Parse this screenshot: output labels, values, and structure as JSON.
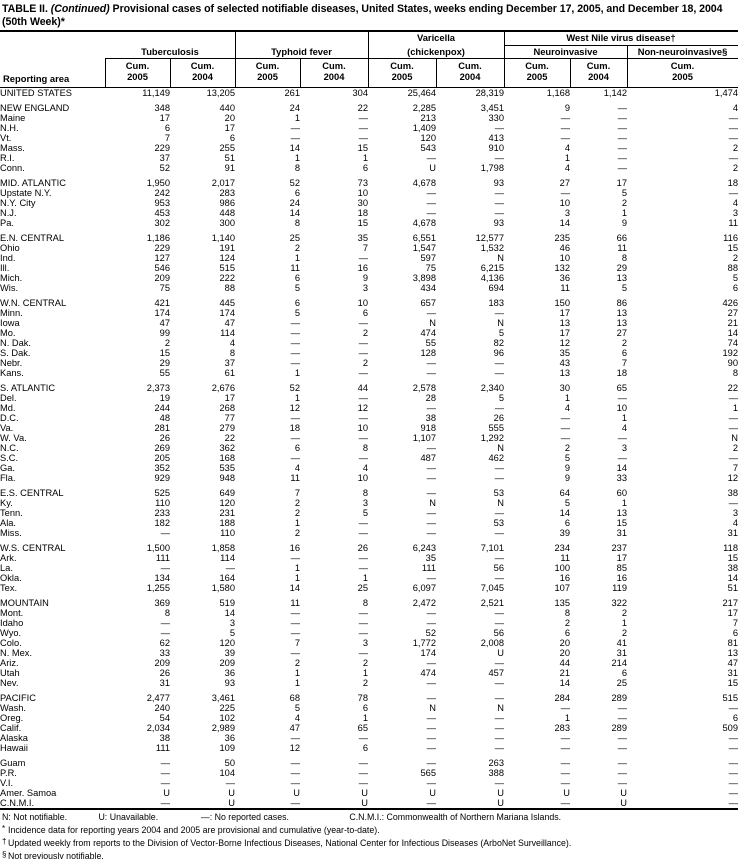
{
  "title": {
    "p1": "TABLE II.",
    "p2": "(Continued)",
    "p3": "Provisional cases of selected notifiable diseases, United States, weeks ending December 17, 2005, and December 18, 2004",
    "line2": "(50th Week)*"
  },
  "header": {
    "reporting_area": "Reporting area",
    "tuberculosis": "Tuberculosis",
    "typhoid": "Typhoid fever",
    "varicella_1": "Varicella",
    "varicella_2": "(chickenpox)",
    "wnv": "West Nile virus disease†",
    "neuro": "Neuroinvasive",
    "non_neuro": "Non-neuroinvasive§",
    "cum": "Cum.",
    "years": [
      "2005",
      "2004",
      "2005",
      "2004",
      "2005",
      "2004",
      "2005",
      "2004",
      "2005"
    ]
  },
  "table": {
    "rows": [
      {
        "area": "UNITED STATES",
        "type": "us",
        "gap": false,
        "values": [
          "11,149",
          "13,205",
          "261",
          "304",
          "25,464",
          "28,319",
          "1,168",
          "1,142",
          "1,474"
        ]
      },
      {
        "area": "NEW ENGLAND",
        "type": "region",
        "gap": true,
        "values": [
          "348",
          "440",
          "24",
          "22",
          "2,285",
          "3,451",
          "9",
          "—",
          "4"
        ]
      },
      {
        "area": "Maine",
        "type": "state",
        "gap": false,
        "values": [
          "17",
          "20",
          "1",
          "—",
          "213",
          "330",
          "—",
          "—",
          "—"
        ]
      },
      {
        "area": "N.H.",
        "type": "state",
        "gap": false,
        "values": [
          "6",
          "17",
          "—",
          "—",
          "1,409",
          "—",
          "—",
          "—",
          "—"
        ]
      },
      {
        "area": "Vt.",
        "type": "state",
        "gap": false,
        "values": [
          "7",
          "6",
          "—",
          "—",
          "120",
          "413",
          "—",
          "—",
          "—"
        ]
      },
      {
        "area": "Mass.",
        "type": "state",
        "gap": false,
        "values": [
          "229",
          "255",
          "14",
          "15",
          "543",
          "910",
          "4",
          "—",
          "2"
        ]
      },
      {
        "area": "R.I.",
        "type": "state",
        "gap": false,
        "values": [
          "37",
          "51",
          "1",
          "1",
          "—",
          "—",
          "1",
          "—",
          "—"
        ]
      },
      {
        "area": "Conn.",
        "type": "state",
        "gap": false,
        "values": [
          "52",
          "91",
          "8",
          "6",
          "U",
          "1,798",
          "4",
          "—",
          "2"
        ]
      },
      {
        "area": "MID. ATLANTIC",
        "type": "region",
        "gap": true,
        "values": [
          "1,950",
          "2,017",
          "52",
          "73",
          "4,678",
          "93",
          "27",
          "17",
          "18"
        ]
      },
      {
        "area": "Upstate N.Y.",
        "type": "state",
        "gap": false,
        "values": [
          "242",
          "283",
          "6",
          "10",
          "—",
          "—",
          "—",
          "5",
          "—"
        ]
      },
      {
        "area": "N.Y. City",
        "type": "state",
        "gap": false,
        "values": [
          "953",
          "986",
          "24",
          "30",
          "—",
          "—",
          "10",
          "2",
          "4"
        ]
      },
      {
        "area": "N.J.",
        "type": "state",
        "gap": false,
        "values": [
          "453",
          "448",
          "14",
          "18",
          "—",
          "—",
          "3",
          "1",
          "3"
        ]
      },
      {
        "area": "Pa.",
        "type": "state",
        "gap": false,
        "values": [
          "302",
          "300",
          "8",
          "15",
          "4,678",
          "93",
          "14",
          "9",
          "11"
        ]
      },
      {
        "area": "E.N. CENTRAL",
        "type": "region",
        "gap": true,
        "values": [
          "1,186",
          "1,140",
          "25",
          "35",
          "6,551",
          "12,577",
          "235",
          "66",
          "116"
        ]
      },
      {
        "area": "Ohio",
        "type": "state",
        "gap": false,
        "values": [
          "229",
          "191",
          "2",
          "7",
          "1,547",
          "1,532",
          "46",
          "11",
          "15"
        ]
      },
      {
        "area": "Ind.",
        "type": "state",
        "gap": false,
        "values": [
          "127",
          "124",
          "1",
          "—",
          "597",
          "N",
          "10",
          "8",
          "2"
        ]
      },
      {
        "area": "Ill.",
        "type": "state",
        "gap": false,
        "values": [
          "546",
          "515",
          "11",
          "16",
          "75",
          "6,215",
          "132",
          "29",
          "88"
        ]
      },
      {
        "area": "Mich.",
        "type": "state",
        "gap": false,
        "values": [
          "209",
          "222",
          "6",
          "9",
          "3,898",
          "4,136",
          "36",
          "13",
          "5"
        ]
      },
      {
        "area": "Wis.",
        "type": "state",
        "gap": false,
        "values": [
          "75",
          "88",
          "5",
          "3",
          "434",
          "694",
          "11",
          "5",
          "6"
        ]
      },
      {
        "area": "W.N. CENTRAL",
        "type": "region",
        "gap": true,
        "values": [
          "421",
          "445",
          "6",
          "10",
          "657",
          "183",
          "150",
          "86",
          "426"
        ]
      },
      {
        "area": "Minn.",
        "type": "state",
        "gap": false,
        "values": [
          "174",
          "174",
          "5",
          "6",
          "—",
          "—",
          "17",
          "13",
          "27"
        ]
      },
      {
        "area": "Iowa",
        "type": "state",
        "gap": false,
        "values": [
          "47",
          "47",
          "—",
          "—",
          "N",
          "N",
          "13",
          "13",
          "21"
        ]
      },
      {
        "area": "Mo.",
        "type": "state",
        "gap": false,
        "values": [
          "99",
          "114",
          "—",
          "2",
          "474",
          "5",
          "17",
          "27",
          "14"
        ]
      },
      {
        "area": "N. Dak.",
        "type": "state",
        "gap": false,
        "values": [
          "2",
          "4",
          "—",
          "—",
          "55",
          "82",
          "12",
          "2",
          "74"
        ]
      },
      {
        "area": "S. Dak.",
        "type": "state",
        "gap": false,
        "values": [
          "15",
          "8",
          "—",
          "—",
          "128",
          "96",
          "35",
          "6",
          "192"
        ]
      },
      {
        "area": "Nebr.",
        "type": "state",
        "gap": false,
        "values": [
          "29",
          "37",
          "—",
          "2",
          "—",
          "—",
          "43",
          "7",
          "90"
        ]
      },
      {
        "area": "Kans.",
        "type": "state",
        "gap": false,
        "values": [
          "55",
          "61",
          "1",
          "—",
          "—",
          "—",
          "13",
          "18",
          "8"
        ]
      },
      {
        "area": "S. ATLANTIC",
        "type": "region",
        "gap": true,
        "values": [
          "2,373",
          "2,676",
          "52",
          "44",
          "2,578",
          "2,340",
          "30",
          "65",
          "22"
        ]
      },
      {
        "area": "Del.",
        "type": "state",
        "gap": false,
        "values": [
          "19",
          "17",
          "1",
          "—",
          "28",
          "5",
          "1",
          "—",
          "—"
        ]
      },
      {
        "area": "Md.",
        "type": "state",
        "gap": false,
        "values": [
          "244",
          "268",
          "12",
          "12",
          "—",
          "—",
          "4",
          "10",
          "1"
        ]
      },
      {
        "area": "D.C.",
        "type": "state",
        "gap": false,
        "values": [
          "48",
          "77",
          "—",
          "—",
          "38",
          "26",
          "—",
          "1",
          "—"
        ]
      },
      {
        "area": "Va.",
        "type": "state",
        "gap": false,
        "values": [
          "281",
          "279",
          "18",
          "10",
          "918",
          "555",
          "—",
          "4",
          "—"
        ]
      },
      {
        "area": "W. Va.",
        "type": "state",
        "gap": false,
        "values": [
          "26",
          "22",
          "—",
          "—",
          "1,107",
          "1,292",
          "—",
          "—",
          "N"
        ]
      },
      {
        "area": "N.C.",
        "type": "state",
        "gap": false,
        "values": [
          "269",
          "362",
          "6",
          "8",
          "—",
          "N",
          "2",
          "3",
          "2"
        ]
      },
      {
        "area": "S.C.",
        "type": "state",
        "gap": false,
        "values": [
          "205",
          "168",
          "—",
          "—",
          "487",
          "462",
          "5",
          "—",
          "—"
        ]
      },
      {
        "area": "Ga.",
        "type": "state",
        "gap": false,
        "values": [
          "352",
          "535",
          "4",
          "4",
          "—",
          "—",
          "9",
          "14",
          "7"
        ]
      },
      {
        "area": "Fla.",
        "type": "state",
        "gap": false,
        "values": [
          "929",
          "948",
          "11",
          "10",
          "—",
          "—",
          "9",
          "33",
          "12"
        ]
      },
      {
        "area": "E.S. CENTRAL",
        "type": "region",
        "gap": true,
        "values": [
          "525",
          "649",
          "7",
          "8",
          "—",
          "53",
          "64",
          "60",
          "38"
        ]
      },
      {
        "area": "Ky.",
        "type": "state",
        "gap": false,
        "values": [
          "110",
          "120",
          "2",
          "3",
          "N",
          "N",
          "5",
          "1",
          "—"
        ]
      },
      {
        "area": "Tenn.",
        "type": "state",
        "gap": false,
        "values": [
          "233",
          "231",
          "2",
          "5",
          "—",
          "—",
          "14",
          "13",
          "3"
        ]
      },
      {
        "area": "Ala.",
        "type": "state",
        "gap": false,
        "values": [
          "182",
          "188",
          "1",
          "—",
          "—",
          "53",
          "6",
          "15",
          "4"
        ]
      },
      {
        "area": "Miss.",
        "type": "state",
        "gap": false,
        "values": [
          "—",
          "110",
          "2",
          "—",
          "—",
          "—",
          "39",
          "31",
          "31"
        ]
      },
      {
        "area": "W.S. CENTRAL",
        "type": "region",
        "gap": true,
        "values": [
          "1,500",
          "1,858",
          "16",
          "26",
          "6,243",
          "7,101",
          "234",
          "237",
          "118"
        ]
      },
      {
        "area": "Ark.",
        "type": "state",
        "gap": false,
        "values": [
          "111",
          "114",
          "—",
          "—",
          "35",
          "—",
          "11",
          "17",
          "15"
        ]
      },
      {
        "area": "La.",
        "type": "state",
        "gap": false,
        "values": [
          "—",
          "—",
          "1",
          "—",
          "111",
          "56",
          "100",
          "85",
          "38"
        ]
      },
      {
        "area": "Okla.",
        "type": "state",
        "gap": false,
        "values": [
          "134",
          "164",
          "1",
          "1",
          "—",
          "—",
          "16",
          "16",
          "14"
        ]
      },
      {
        "area": "Tex.",
        "type": "state",
        "gap": false,
        "values": [
          "1,255",
          "1,580",
          "14",
          "25",
          "6,097",
          "7,045",
          "107",
          "119",
          "51"
        ]
      },
      {
        "area": "MOUNTAIN",
        "type": "region",
        "gap": true,
        "values": [
          "369",
          "519",
          "11",
          "8",
          "2,472",
          "2,521",
          "135",
          "322",
          "217"
        ]
      },
      {
        "area": "Mont.",
        "type": "state",
        "gap": false,
        "values": [
          "8",
          "14",
          "—",
          "—",
          "—",
          "—",
          "8",
          "2",
          "17"
        ]
      },
      {
        "area": "Idaho",
        "type": "state",
        "gap": false,
        "values": [
          "—",
          "3",
          "—",
          "—",
          "—",
          "—",
          "2",
          "1",
          "7"
        ]
      },
      {
        "area": "Wyo.",
        "type": "state",
        "gap": false,
        "values": [
          "—",
          "5",
          "—",
          "—",
          "52",
          "56",
          "6",
          "2",
          "6"
        ]
      },
      {
        "area": "Colo.",
        "type": "state",
        "gap": false,
        "values": [
          "62",
          "120",
          "7",
          "3",
          "1,772",
          "2,008",
          "20",
          "41",
          "81"
        ]
      },
      {
        "area": "N. Mex.",
        "type": "state",
        "gap": false,
        "values": [
          "33",
          "39",
          "—",
          "—",
          "174",
          "U",
          "20",
          "31",
          "13"
        ]
      },
      {
        "area": "Ariz.",
        "type": "state",
        "gap": false,
        "values": [
          "209",
          "209",
          "2",
          "2",
          "—",
          "—",
          "44",
          "214",
          "47"
        ]
      },
      {
        "area": "Utah",
        "type": "state",
        "gap": false,
        "values": [
          "26",
          "36",
          "1",
          "1",
          "474",
          "457",
          "21",
          "6",
          "31"
        ]
      },
      {
        "area": "Nev.",
        "type": "state",
        "gap": false,
        "values": [
          "31",
          "93",
          "1",
          "2",
          "—",
          "—",
          "14",
          "25",
          "15"
        ]
      },
      {
        "area": "PACIFIC",
        "type": "region",
        "gap": true,
        "values": [
          "2,477",
          "3,461",
          "68",
          "78",
          "—",
          "—",
          "284",
          "289",
          "515"
        ]
      },
      {
        "area": "Wash.",
        "type": "state",
        "gap": false,
        "values": [
          "240",
          "225",
          "5",
          "6",
          "N",
          "N",
          "—",
          "—",
          "—"
        ]
      },
      {
        "area": "Oreg.",
        "type": "state",
        "gap": false,
        "values": [
          "54",
          "102",
          "4",
          "1",
          "—",
          "—",
          "1",
          "—",
          "6"
        ]
      },
      {
        "area": "Calif.",
        "type": "state",
        "gap": false,
        "values": [
          "2,034",
          "2,989",
          "47",
          "65",
          "—",
          "—",
          "283",
          "289",
          "509"
        ]
      },
      {
        "area": "Alaska",
        "type": "state",
        "gap": false,
        "values": [
          "38",
          "36",
          "—",
          "—",
          "—",
          "—",
          "—",
          "—",
          "—"
        ]
      },
      {
        "area": "Hawaii",
        "type": "state",
        "gap": false,
        "values": [
          "111",
          "109",
          "12",
          "6",
          "—",
          "—",
          "—",
          "—",
          "—"
        ]
      },
      {
        "area": "Guam",
        "type": "territory",
        "gap": true,
        "values": [
          "—",
          "50",
          "—",
          "—",
          "—",
          "263",
          "—",
          "—",
          "—"
        ]
      },
      {
        "area": "P.R.",
        "type": "territory",
        "gap": false,
        "values": [
          "—",
          "104",
          "—",
          "—",
          "565",
          "388",
          "—",
          "—",
          "—"
        ]
      },
      {
        "area": "V.I.",
        "type": "territory",
        "gap": false,
        "values": [
          "—",
          "—",
          "—",
          "—",
          "—",
          "—",
          "—",
          "—",
          "—"
        ]
      },
      {
        "area": "Amer. Samoa",
        "type": "territory",
        "gap": false,
        "values": [
          "U",
          "U",
          "U",
          "U",
          "U",
          "U",
          "U",
          "U",
          "—"
        ]
      },
      {
        "area": "C.N.M.I.",
        "type": "territory",
        "gap": false,
        "values": [
          "—",
          "U",
          "—",
          "U",
          "—",
          "U",
          "—",
          "U",
          "—"
        ]
      }
    ]
  },
  "footnotes": {
    "legend": [
      {
        "k": "N:",
        "v": "Not notifiable."
      },
      {
        "k": "U:",
        "v": "Unavailable."
      },
      {
        "k": "—:",
        "v": "No reported cases."
      },
      {
        "k": "C.N.M.I.:",
        "v": "Commonwealth of Northern Mariana Islands."
      }
    ],
    "notes": [
      {
        "marker": "*",
        "text": "Incidence data for reporting years 2004 and 2005 are provisional and cumulative (year-to-date)."
      },
      {
        "marker": "†",
        "text": "Updated weekly from reports to the Division of Vector-Borne Infectious Diseases, National Center for Infectious Diseases (ArboNet Surveillance)."
      },
      {
        "marker": "§",
        "text": "Not previously notifiable."
      }
    ]
  }
}
